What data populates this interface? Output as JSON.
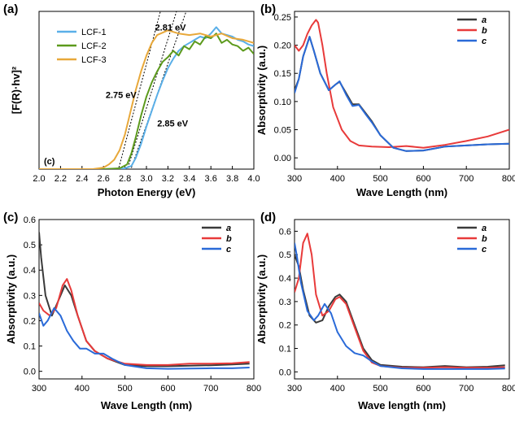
{
  "chart_data": [
    {
      "id": "a",
      "type": "line",
      "panel_label": "(a)",
      "corner_text": "(c)",
      "xlabel": "Photon Energy (eV)",
      "ylabel": "[F(R)·hv]²",
      "xlim": [
        2.0,
        4.0
      ],
      "ylim": [
        0,
        1.0
      ],
      "xticks": [
        2.0,
        2.2,
        2.4,
        2.6,
        2.8,
        3.0,
        3.2,
        3.4,
        3.6,
        3.8,
        4.0
      ],
      "xtick_labels": [
        "2.0",
        "2.2",
        "2.4",
        "2.6",
        "2.8",
        "3.0",
        "3.2",
        "3.4",
        "3.6",
        "3.8",
        "4.0"
      ],
      "yticks": [],
      "legend_position": "top-left",
      "series": [
        {
          "name": "LCF-1",
          "color": "#5aafe8",
          "x": [
            2.0,
            2.6,
            2.8,
            2.86,
            2.9,
            2.95,
            3.0,
            3.05,
            3.1,
            3.15,
            3.2,
            3.25,
            3.3,
            3.35,
            3.4,
            3.45,
            3.5,
            3.55,
            3.6,
            3.65,
            3.7,
            3.75,
            3.8,
            3.85,
            3.9,
            3.95,
            4.0
          ],
          "y": [
            0.0,
            0.0,
            0.005,
            0.02,
            0.07,
            0.16,
            0.27,
            0.37,
            0.47,
            0.56,
            0.64,
            0.7,
            0.75,
            0.78,
            0.8,
            0.82,
            0.84,
            0.83,
            0.86,
            0.9,
            0.86,
            0.85,
            0.84,
            0.82,
            0.81,
            0.79,
            0.78
          ]
        },
        {
          "name": "LCF-2",
          "color": "#5c9a1c",
          "x": [
            2.0,
            2.6,
            2.75,
            2.82,
            2.86,
            2.9,
            2.95,
            3.0,
            3.05,
            3.1,
            3.15,
            3.2,
            3.25,
            3.3,
            3.35,
            3.4,
            3.45,
            3.5,
            3.55,
            3.6,
            3.65,
            3.7,
            3.75,
            3.8,
            3.85,
            3.9,
            3.95,
            4.0
          ],
          "y": [
            0.0,
            0.0,
            0.005,
            0.03,
            0.1,
            0.2,
            0.34,
            0.46,
            0.55,
            0.62,
            0.68,
            0.71,
            0.75,
            0.72,
            0.78,
            0.76,
            0.81,
            0.79,
            0.84,
            0.83,
            0.86,
            0.8,
            0.82,
            0.79,
            0.78,
            0.75,
            0.77,
            0.73
          ]
        },
        {
          "name": "LCF-3",
          "color": "#e8a83a",
          "x": [
            2.0,
            2.5,
            2.6,
            2.65,
            2.7,
            2.75,
            2.8,
            2.85,
            2.9,
            2.95,
            3.0,
            3.05,
            3.1,
            3.2,
            3.3,
            3.4,
            3.5,
            3.6,
            3.7,
            3.8,
            3.9,
            4.0
          ],
          "y": [
            0.0,
            0.0,
            0.01,
            0.03,
            0.06,
            0.12,
            0.22,
            0.36,
            0.5,
            0.62,
            0.72,
            0.8,
            0.85,
            0.88,
            0.86,
            0.85,
            0.86,
            0.84,
            0.86,
            0.83,
            0.82,
            0.8
          ]
        }
      ],
      "tangent_lines": [
        {
          "x": [
            2.72,
            3.13
          ],
          "y": [
            -0.05,
            1.0
          ]
        },
        {
          "x": [
            2.8,
            3.28
          ],
          "y": [
            -0.05,
            1.0
          ]
        },
        {
          "x": [
            2.83,
            3.37
          ],
          "y": [
            -0.05,
            1.0
          ]
        },
        {
          "x": [
            2.62,
            3.0
          ],
          "y": [
            0.0,
            0.0
          ]
        }
      ],
      "annotations": [
        {
          "text": "2.81 eV",
          "x": 3.08,
          "y": 0.88
        },
        {
          "text": "2.75 eV",
          "x": 2.62,
          "y": 0.45
        },
        {
          "text": "2.85 eV",
          "x": 3.1,
          "y": 0.27
        }
      ]
    },
    {
      "id": "b",
      "type": "line",
      "panel_label": "(b)",
      "xlabel": "Wave Length (nm)",
      "ylabel": "Absorptivity (a.u.)",
      "xlim": [
        300,
        800
      ],
      "ylim": [
        -0.02,
        0.26
      ],
      "xticks": [
        300,
        400,
        500,
        600,
        700,
        800
      ],
      "xtick_labels": [
        "300",
        "400",
        "500",
        "600",
        "700",
        "800"
      ],
      "yticks": [
        0.0,
        0.05,
        0.1,
        0.15,
        0.2,
        0.25
      ],
      "ytick_labels": [
        "0.00",
        "0.05",
        "0.10",
        "0.15",
        "0.20",
        "0.25"
      ],
      "legend_position": "top-right",
      "series": [
        {
          "name": "a",
          "color": "#3a3a3a",
          "x": [
            300,
            310,
            320,
            335,
            345,
            360,
            380,
            395,
            405,
            420,
            435,
            450,
            465,
            480,
            500,
            530,
            560,
            600,
            650,
            700,
            750,
            800
          ],
          "y": [
            0.12,
            0.14,
            0.18,
            0.215,
            0.19,
            0.15,
            0.12,
            0.13,
            0.135,
            0.115,
            0.095,
            0.095,
            0.08,
            0.065,
            0.04,
            0.018,
            0.012,
            0.013,
            0.02,
            0.022,
            0.024,
            0.025
          ]
        },
        {
          "name": "b",
          "color": "#e83a3a",
          "x": [
            300,
            310,
            320,
            330,
            340,
            350,
            355,
            365,
            375,
            390,
            410,
            430,
            450,
            480,
            520,
            560,
            600,
            650,
            700,
            750,
            800
          ],
          "y": [
            0.2,
            0.19,
            0.2,
            0.22,
            0.235,
            0.245,
            0.24,
            0.2,
            0.15,
            0.09,
            0.05,
            0.03,
            0.022,
            0.02,
            0.019,
            0.021,
            0.018,
            0.023,
            0.03,
            0.038,
            0.05
          ]
        },
        {
          "name": "c",
          "color": "#2a6ad8",
          "x": [
            300,
            310,
            320,
            335,
            345,
            360,
            380,
            395,
            405,
            420,
            435,
            450,
            465,
            480,
            500,
            530,
            560,
            600,
            650,
            700,
            750,
            800
          ],
          "y": [
            0.115,
            0.14,
            0.18,
            0.215,
            0.19,
            0.15,
            0.12,
            0.13,
            0.136,
            0.112,
            0.092,
            0.094,
            0.078,
            0.063,
            0.04,
            0.018,
            0.012,
            0.013,
            0.02,
            0.022,
            0.024,
            0.025
          ]
        }
      ]
    },
    {
      "id": "c",
      "type": "line",
      "panel_label": "(c)",
      "xlabel": "Wave Length (nm)",
      "ylabel": "Absorptivity (a.u.)",
      "xlim": [
        300,
        800
      ],
      "ylim": [
        -0.03,
        0.6
      ],
      "xticks": [
        300,
        400,
        500,
        600,
        700,
        800
      ],
      "xtick_labels": [
        "300",
        "400",
        "500",
        "600",
        "700",
        "800"
      ],
      "yticks": [
        0.0,
        0.1,
        0.2,
        0.3,
        0.4,
        0.5,
        0.6
      ],
      "ytick_labels": [
        "0.0",
        "0.1",
        "0.2",
        "0.3",
        "0.4",
        "0.5",
        "0.6"
      ],
      "legend_position": "top-right",
      "series": [
        {
          "name": "a",
          "color": "#3a3a3a",
          "x": [
            300,
            305,
            315,
            330,
            345,
            360,
            375,
            390,
            410,
            430,
            460,
            500,
            550,
            600,
            650,
            700,
            750,
            790
          ],
          "y": [
            0.55,
            0.45,
            0.3,
            0.22,
            0.28,
            0.34,
            0.3,
            0.22,
            0.12,
            0.08,
            0.05,
            0.025,
            0.02,
            0.02,
            0.022,
            0.024,
            0.027,
            0.03
          ]
        },
        {
          "name": "b",
          "color": "#e83a3a",
          "x": [
            300,
            310,
            325,
            340,
            355,
            365,
            375,
            390,
            410,
            430,
            460,
            500,
            550,
            600,
            650,
            700,
            750,
            790
          ],
          "y": [
            0.27,
            0.24,
            0.22,
            0.25,
            0.34,
            0.365,
            0.32,
            0.22,
            0.12,
            0.08,
            0.05,
            0.03,
            0.025,
            0.025,
            0.03,
            0.03,
            0.032,
            0.037
          ]
        },
        {
          "name": "c",
          "color": "#2a6ad8",
          "x": [
            300,
            310,
            320,
            335,
            350,
            365,
            380,
            395,
            410,
            430,
            450,
            470,
            500,
            550,
            600,
            650,
            700,
            750,
            790
          ],
          "y": [
            0.23,
            0.18,
            0.2,
            0.25,
            0.22,
            0.16,
            0.12,
            0.09,
            0.09,
            0.07,
            0.07,
            0.05,
            0.025,
            0.012,
            0.01,
            0.011,
            0.012,
            0.012,
            0.015
          ]
        }
      ]
    },
    {
      "id": "d",
      "type": "line",
      "panel_label": "(d)",
      "xlabel": "Wave length (nm)",
      "ylabel": "Absorptivity (a.u.)",
      "xlim": [
        300,
        800
      ],
      "ylim": [
        -0.03,
        0.65
      ],
      "xticks": [
        300,
        400,
        500,
        600,
        700,
        800
      ],
      "xtick_labels": [
        "300",
        "400",
        "500",
        "600",
        "700",
        "800"
      ],
      "yticks": [
        0.0,
        0.1,
        0.2,
        0.3,
        0.4,
        0.5,
        0.6
      ],
      "ytick_labels": [
        "0.0",
        "0.1",
        "0.2",
        "0.3",
        "0.4",
        "0.5",
        "0.6"
      ],
      "legend_position": "top-right",
      "series": [
        {
          "name": "a",
          "color": "#3a3a3a",
          "x": [
            300,
            310,
            320,
            335,
            350,
            365,
            380,
            395,
            405,
            420,
            440,
            460,
            480,
            500,
            550,
            600,
            650,
            700,
            750,
            790
          ],
          "y": [
            0.5,
            0.45,
            0.35,
            0.24,
            0.21,
            0.22,
            0.28,
            0.32,
            0.33,
            0.3,
            0.2,
            0.1,
            0.05,
            0.03,
            0.022,
            0.02,
            0.025,
            0.02,
            0.022,
            0.028
          ]
        },
        {
          "name": "b",
          "color": "#e83a3a",
          "x": [
            300,
            310,
            320,
            330,
            340,
            350,
            365,
            380,
            395,
            405,
            420,
            440,
            460,
            480,
            500,
            550,
            600,
            650,
            700,
            750,
            790
          ],
          "y": [
            0.34,
            0.4,
            0.55,
            0.59,
            0.5,
            0.33,
            0.24,
            0.26,
            0.31,
            0.32,
            0.29,
            0.19,
            0.09,
            0.04,
            0.025,
            0.018,
            0.018,
            0.02,
            0.018,
            0.018,
            0.02
          ]
        },
        {
          "name": "c",
          "color": "#2a6ad8",
          "x": [
            300,
            305,
            315,
            330,
            345,
            355,
            370,
            385,
            400,
            420,
            440,
            460,
            480,
            500,
            550,
            600,
            650,
            700,
            750,
            790
          ],
          "y": [
            0.55,
            0.5,
            0.38,
            0.26,
            0.22,
            0.24,
            0.29,
            0.25,
            0.17,
            0.11,
            0.08,
            0.07,
            0.045,
            0.025,
            0.015,
            0.012,
            0.012,
            0.012,
            0.012,
            0.014
          ]
        }
      ]
    }
  ]
}
